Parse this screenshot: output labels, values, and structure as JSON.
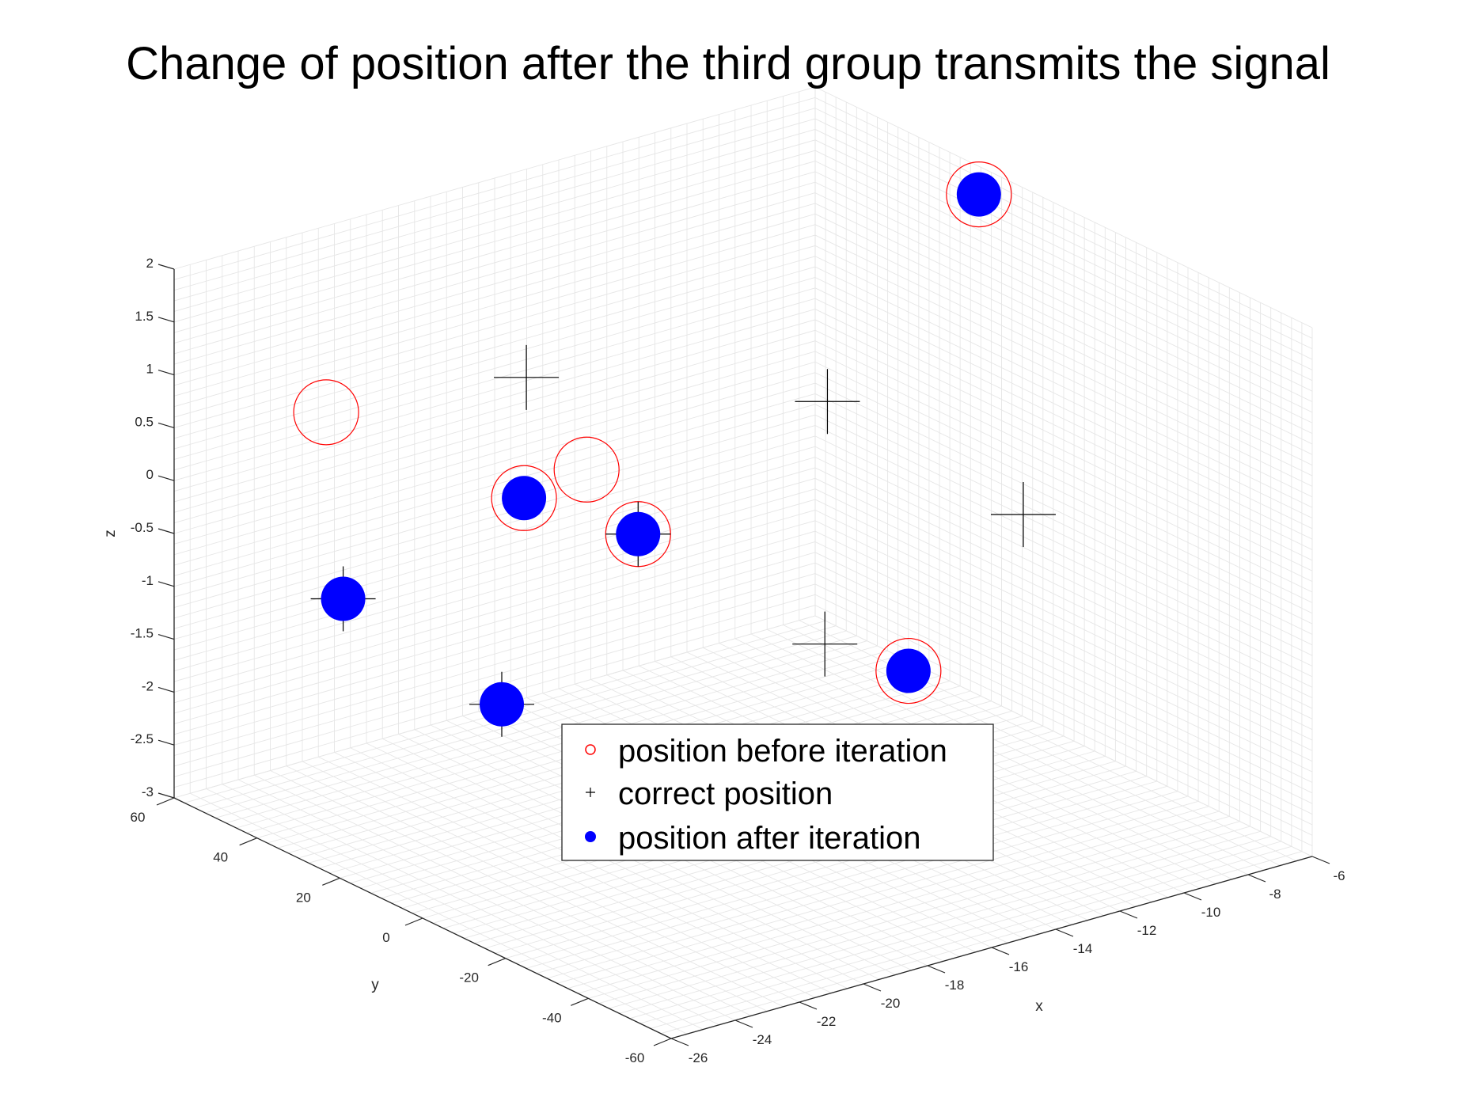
{
  "chart_data": {
    "type": "scatter",
    "title": "Change of position after the third group transmits the signal",
    "xlabel": "x",
    "ylabel": "y",
    "zlabel": "z",
    "xlim": [
      -26,
      -6
    ],
    "ylim": [
      -60,
      60
    ],
    "zlim": [
      -3,
      2
    ],
    "xticks": [
      "-26",
      "-24",
      "-22",
      "-20",
      "-18",
      "-16",
      "-14",
      "-12",
      "-10",
      "-8",
      "-6"
    ],
    "yticks": [
      "-60",
      "-40",
      "-20",
      "0",
      "20",
      "40",
      "60"
    ],
    "zticks": [
      "-3",
      "-2.5",
      "-2",
      "-1.5",
      "-1",
      "-0.5",
      "0",
      "0.5",
      "1",
      "1.5",
      "2"
    ],
    "grid": true,
    "legend_location": "bottom-center",
    "legend": [
      {
        "label": "position before iteration",
        "marker": "circle-open",
        "color": "#ff0000"
      },
      {
        "label": "correct position",
        "marker": "plus",
        "color": "#000000"
      },
      {
        "label": "position after iteration",
        "marker": "circle-filled",
        "color": "#0000ff"
      }
    ],
    "series": [
      {
        "name": "position before iteration",
        "marker": "circle-open",
        "color": "#ff0000",
        "points": [
          {
            "x": -24.1,
            "y": 38.0,
            "z": 0.9
          },
          {
            "x": -18.3,
            "y": 20.0,
            "z": 0.2
          },
          {
            "x": -19.4,
            "y": 26.6,
            "z": -0.1
          },
          {
            "x": -16.9,
            "y": 18.4,
            "z": -0.5
          },
          {
            "x": -8.0,
            "y": 5.0,
            "z": 2.2
          },
          {
            "x": -12.2,
            "y": -10.5,
            "z": -1.65
          },
          {
            "x": -15.0,
            "y": -40.3,
            "z": -2.2
          }
        ]
      },
      {
        "name": "correct position",
        "marker": "plus",
        "color": "#000000",
        "points": [
          {
            "x": -16.6,
            "y": 47.7,
            "z": 0.4
          },
          {
            "x": -10.8,
            "y": 19.9,
            "z": 0.2
          },
          {
            "x": -8.1,
            "y": -6.5,
            "z": -0.6
          },
          {
            "x": -13.4,
            "y": 0.4,
            "z": -1.5
          },
          {
            "x": -24.9,
            "y": 27.7,
            "z": -0.6
          },
          {
            "x": -22.2,
            "y": 10.3,
            "z": -1.5
          },
          {
            "x": -16.9,
            "y": 18.4,
            "z": -0.5
          }
        ]
      },
      {
        "name": "position after iteration",
        "marker": "circle-filled",
        "color": "#0000ff",
        "points": [
          {
            "x": -24.9,
            "y": 27.7,
            "z": -0.6
          },
          {
            "x": -19.4,
            "y": 26.6,
            "z": -0.1
          },
          {
            "x": -16.9,
            "y": 18.4,
            "z": -0.5
          },
          {
            "x": -22.2,
            "y": 10.3,
            "z": -1.5
          },
          {
            "x": -8.0,
            "y": 5.0,
            "z": 2.2
          },
          {
            "x": -12.2,
            "y": -10.5,
            "z": -1.65
          },
          {
            "x": -15.0,
            "y": -40.3,
            "z": -2.2
          }
        ]
      }
    ]
  },
  "colors": {
    "before": "#ff0000",
    "correct": "#000000",
    "after": "#0000ff",
    "grid": "#e6e6e6",
    "axis": "#262626"
  }
}
